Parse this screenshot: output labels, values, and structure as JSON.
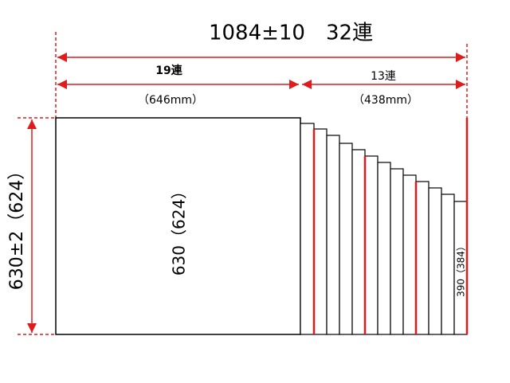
{
  "title": "1084±10　32連",
  "dimensions": {
    "left_count": "19連",
    "right_count": "13連",
    "left_width": "（646mm）",
    "right_width": "（438mm）",
    "height": "630±2（624）"
  },
  "panel_labels": {
    "large": "630（624）",
    "small": "390（384）"
  }
}
